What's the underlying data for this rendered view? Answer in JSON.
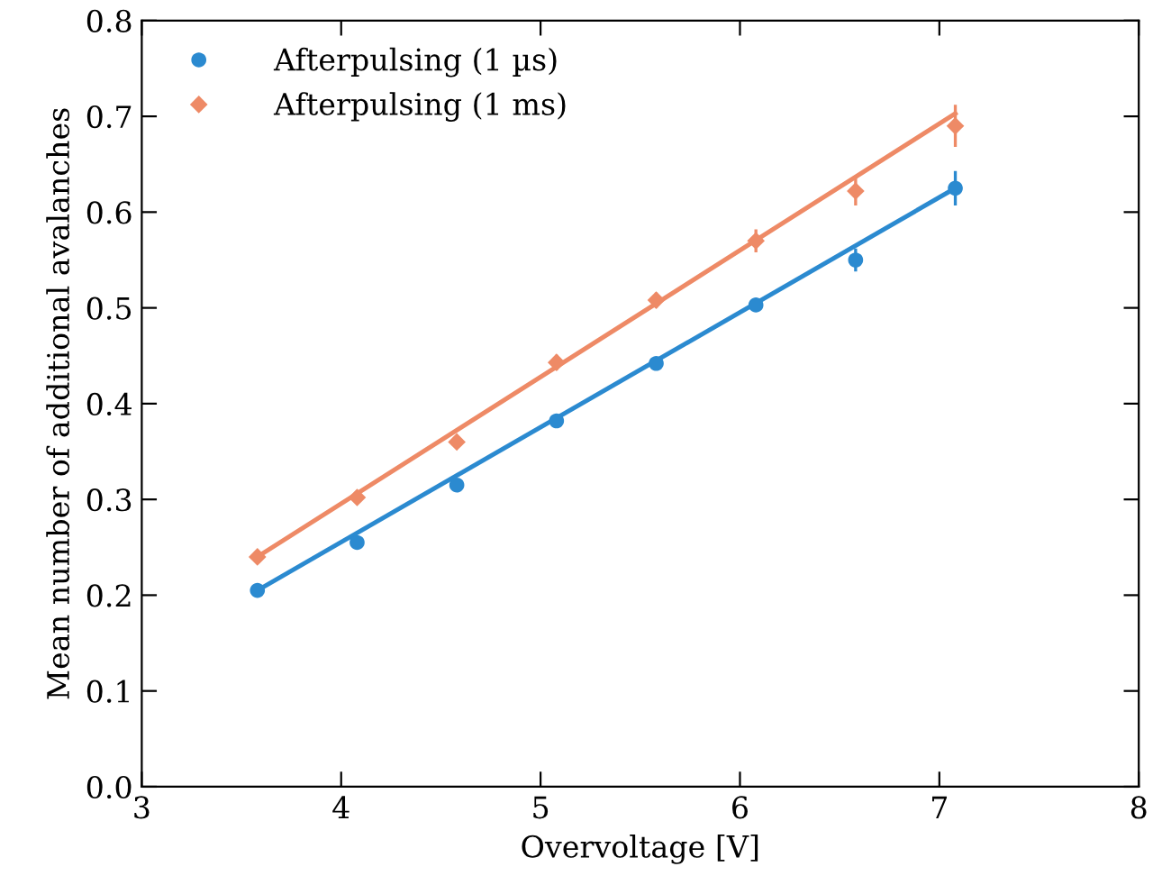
{
  "chart_data": {
    "type": "scatter",
    "xlabel": "Overvoltage [V]",
    "ylabel": "Mean number of additional avalanches",
    "xlim": [
      3,
      8
    ],
    "ylim": [
      0.0,
      0.8
    ],
    "xticks": [
      3,
      4,
      5,
      6,
      7,
      8
    ],
    "yticks": [
      {
        "value": 0.0,
        "label": "0.0"
      },
      0.1,
      0.2,
      0.3,
      0.4,
      0.5,
      0.6,
      0.7,
      0.8
    ],
    "grid": false,
    "legend": "top left",
    "series": [
      {
        "name": "Afterpulsing (1 µs)",
        "color": "#2b8ad0",
        "marker": "circle",
        "x": [
          3.58,
          4.08,
          4.58,
          5.08,
          5.58,
          6.08,
          6.58,
          7.08
        ],
        "values": [
          0.205,
          0.255,
          0.315,
          0.382,
          0.442,
          0.503,
          0.55,
          0.625
        ],
        "errors": [
          0.004,
          0.005,
          0.005,
          0.006,
          0.006,
          0.007,
          0.012,
          0.018
        ]
      },
      {
        "name": "Afterpulsing (1 ms)",
        "color": "#ee8a66",
        "marker": "diamond",
        "x": [
          3.58,
          4.08,
          4.58,
          5.08,
          5.58,
          6.08,
          6.58,
          7.08
        ],
        "values": [
          0.24,
          0.302,
          0.36,
          0.443,
          0.508,
          0.57,
          0.622,
          0.69
        ],
        "errors": [
          0.004,
          0.005,
          0.006,
          0.008,
          0.008,
          0.012,
          0.015,
          0.022
        ]
      },
      {
        "type": "line",
        "color": "#2b8ad0",
        "x": [
          3.58,
          7.08
        ],
        "values": [
          0.205,
          0.625
        ]
      },
      {
        "type": "line",
        "color": "#ee8a66",
        "x": [
          3.58,
          7.08
        ],
        "values": [
          0.24,
          0.703
        ]
      }
    ]
  }
}
